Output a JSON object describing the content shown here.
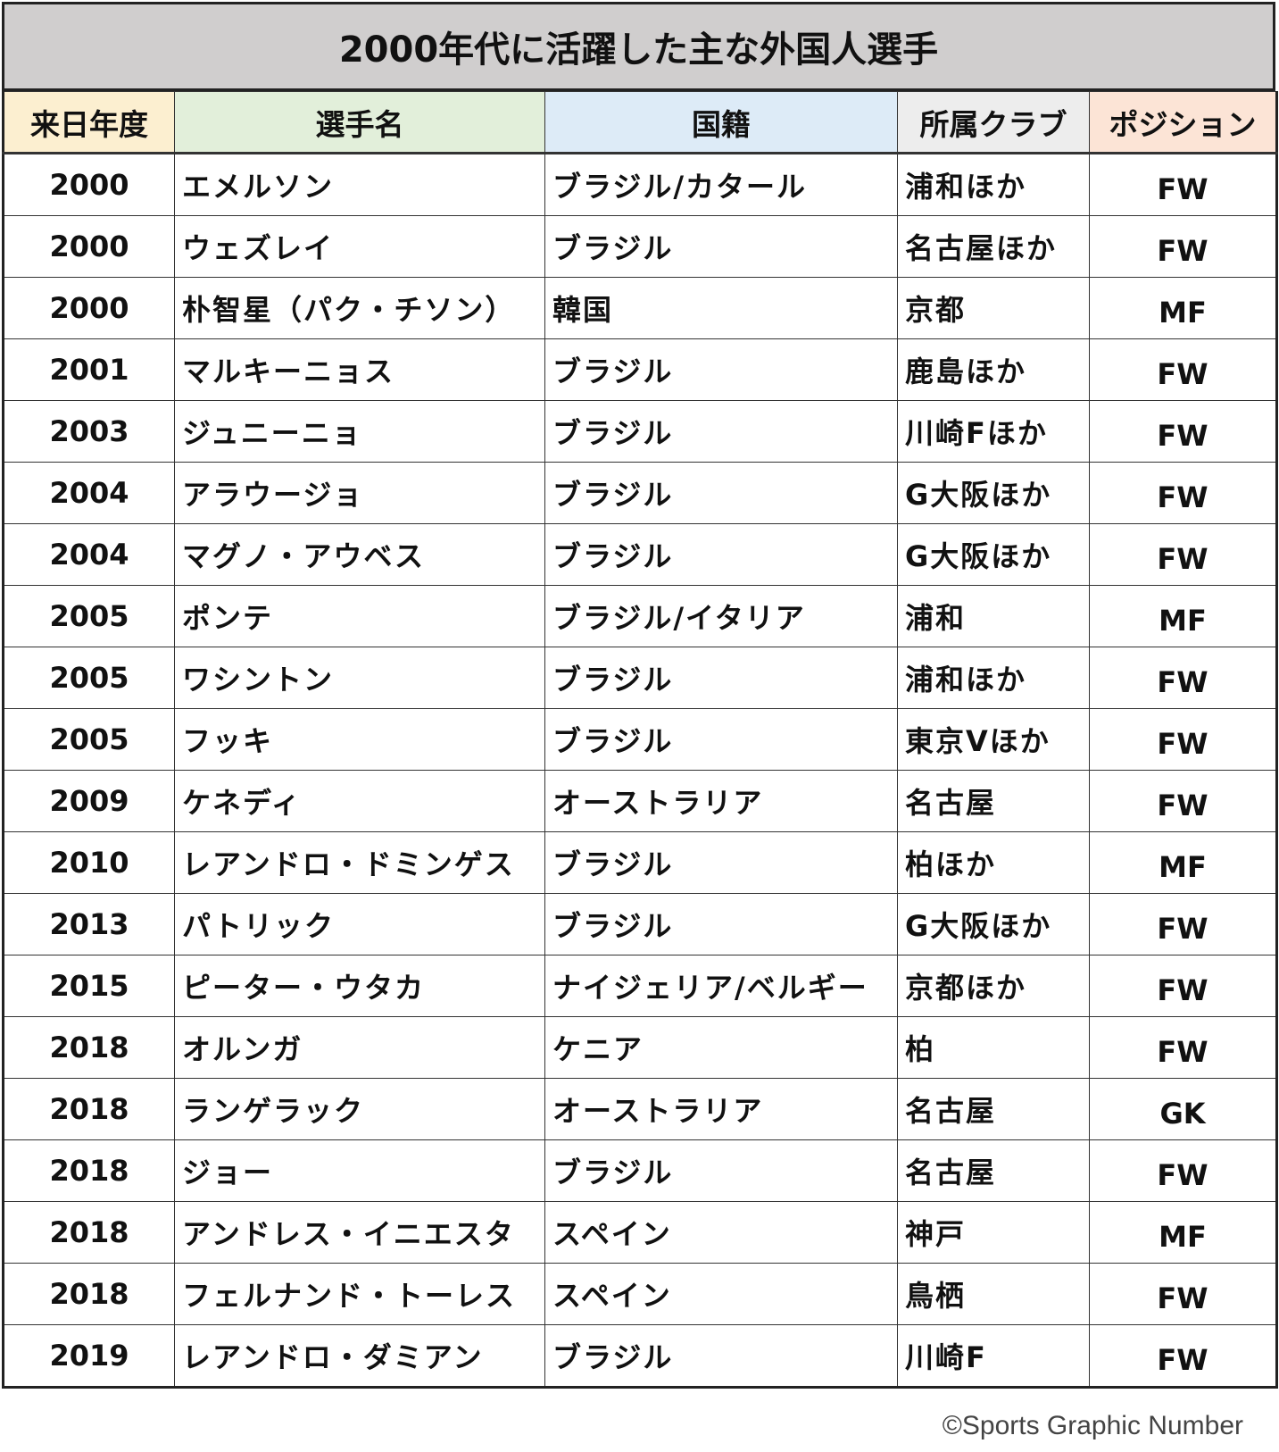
{
  "title": "2000年代に活躍した主な外国人選手",
  "headers": [
    {
      "label": "来日年度",
      "color": "#fcefd0"
    },
    {
      "label": "選手名",
      "color": "#e2efda"
    },
    {
      "label": "国籍",
      "color": "#ddebf7"
    },
    {
      "label": "所属クラブ",
      "color": "#ededed"
    },
    {
      "label": "ポジション",
      "color": "#fce4d6"
    }
  ],
  "rows": [
    [
      "2000",
      "エメルソン",
      "ブラジル/カタール",
      "浦和ほか",
      "FW"
    ],
    [
      "2000",
      "ウェズレイ",
      "ブラジル",
      "名古屋ほか",
      "FW"
    ],
    [
      "2000",
      "朴智星（パク・チソン）",
      "韓国",
      "京都",
      "MF"
    ],
    [
      "2001",
      "マルキーニョス",
      "ブラジル",
      "鹿島ほか",
      "FW"
    ],
    [
      "2003",
      "ジュニーニョ",
      "ブラジル",
      "川崎Fほか",
      "FW"
    ],
    [
      "2004",
      "アラウージョ",
      "ブラジル",
      "G大阪ほか",
      "FW"
    ],
    [
      "2004",
      "マグノ・アウベス",
      "ブラジル",
      "G大阪ほか",
      "FW"
    ],
    [
      "2005",
      "ポンテ",
      "ブラジル/イタリア",
      "浦和",
      "MF"
    ],
    [
      "2005",
      "ワシントン",
      "ブラジル",
      "浦和ほか",
      "FW"
    ],
    [
      "2005",
      "フッキ",
      "ブラジル",
      "東京Vほか",
      "FW"
    ],
    [
      "2009",
      "ケネディ",
      "オーストラリア",
      "名古屋",
      "FW"
    ],
    [
      "2010",
      "レアンドロ・ドミンゲス",
      "ブラジル",
      "柏ほか",
      "MF"
    ],
    [
      "2013",
      "パトリック",
      "ブラジル",
      "G大阪ほか",
      "FW"
    ],
    [
      "2015",
      "ピーター・ウタカ",
      "ナイジェリア/ベルギー",
      "京都ほか",
      "FW"
    ],
    [
      "2018",
      "オルンガ",
      "ケニア",
      "柏",
      "FW"
    ],
    [
      "2018",
      "ランゲラック",
      "オーストラリア",
      "名古屋",
      "GK"
    ],
    [
      "2018",
      "ジョー",
      "ブラジル",
      "名古屋",
      "FW"
    ],
    [
      "2018",
      "アンドレス・イニエスタ",
      "スペイン",
      "神戸",
      "MF"
    ],
    [
      "2018",
      "フェルナンド・トーレス",
      "スペイン",
      "鳥栖",
      "FW"
    ],
    [
      "2019",
      "レアンドロ・ダミアン",
      "ブラジル",
      "川崎F",
      "FW"
    ]
  ],
  "footer": "©Sports Graphic Number"
}
